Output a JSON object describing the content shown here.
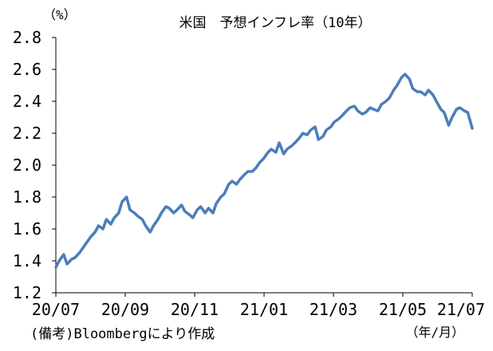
{
  "chart_data": {
    "type": "line",
    "title": "米国　予想インフレ率（10年）",
    "y_unit_label": "（%）",
    "x_unit_label": "（年/月）",
    "source_note": "(備考)Bloombergにより作成",
    "ylim": [
      1.2,
      2.8
    ],
    "y_ticks": [
      "1.2",
      "1.4",
      "1.6",
      "1.8",
      "2.0",
      "2.2",
      "2.4",
      "2.6",
      "2.8"
    ],
    "x_ticks": [
      "20/07",
      "20/09",
      "20/11",
      "21/01",
      "21/03",
      "21/05",
      "21/07"
    ],
    "grid": false,
    "legend": "none",
    "series_color": "#4A7EBB",
    "series": [
      {
        "x": [
          "2020-07-01",
          "2020-07-04",
          "2020-07-08",
          "2020-07-11",
          "2020-07-15",
          "2020-07-18",
          "2020-07-22",
          "2020-07-25",
          "2020-07-29",
          "2020-08-01",
          "2020-08-05",
          "2020-08-08",
          "2020-08-12",
          "2020-08-15",
          "2020-08-19",
          "2020-08-22",
          "2020-08-26",
          "2020-08-29",
          "2020-09-02",
          "2020-09-05",
          "2020-09-09",
          "2020-09-12",
          "2020-09-16",
          "2020-09-19",
          "2020-09-23",
          "2020-09-26",
          "2020-09-30",
          "2020-10-03",
          "2020-10-07",
          "2020-10-10",
          "2020-10-14",
          "2020-10-17",
          "2020-10-21",
          "2020-10-24",
          "2020-10-28",
          "2020-10-31",
          "2020-11-04",
          "2020-11-07",
          "2020-11-11",
          "2020-11-14",
          "2020-11-18",
          "2020-11-21",
          "2020-11-25",
          "2020-11-28",
          "2020-12-02",
          "2020-12-05",
          "2020-12-09",
          "2020-12-12",
          "2020-12-16",
          "2020-12-19",
          "2020-12-23",
          "2020-12-26",
          "2020-12-30",
          "2021-01-02",
          "2021-01-06",
          "2021-01-09",
          "2021-01-13",
          "2021-01-16",
          "2021-01-20",
          "2021-01-23",
          "2021-01-27",
          "2021-01-30",
          "2021-02-03",
          "2021-02-06",
          "2021-02-10",
          "2021-02-13",
          "2021-02-17",
          "2021-02-20",
          "2021-02-24",
          "2021-02-27",
          "2021-03-03",
          "2021-03-06",
          "2021-03-10",
          "2021-03-13",
          "2021-03-17",
          "2021-03-20",
          "2021-03-24",
          "2021-03-27",
          "2021-03-31",
          "2021-04-03",
          "2021-04-07",
          "2021-04-10",
          "2021-04-14",
          "2021-04-17",
          "2021-04-21",
          "2021-04-24",
          "2021-04-28",
          "2021-05-01",
          "2021-05-05",
          "2021-05-08",
          "2021-05-12",
          "2021-05-15",
          "2021-05-19",
          "2021-05-22",
          "2021-05-26",
          "2021-05-29",
          "2021-06-02",
          "2021-06-05",
          "2021-06-09",
          "2021-06-12",
          "2021-06-16",
          "2021-06-19",
          "2021-06-23",
          "2021-06-26",
          "2021-06-30",
          "2021-07-03",
          "2021-07-07"
        ],
        "y": [
          1.36,
          1.4,
          1.44,
          1.38,
          1.41,
          1.42,
          1.45,
          1.48,
          1.52,
          1.55,
          1.58,
          1.62,
          1.6,
          1.66,
          1.63,
          1.67,
          1.7,
          1.77,
          1.8,
          1.72,
          1.7,
          1.68,
          1.66,
          1.62,
          1.58,
          1.62,
          1.66,
          1.7,
          1.74,
          1.73,
          1.7,
          1.72,
          1.75,
          1.71,
          1.69,
          1.67,
          1.72,
          1.74,
          1.7,
          1.73,
          1.7,
          1.76,
          1.8,
          1.82,
          1.88,
          1.9,
          1.88,
          1.91,
          1.94,
          1.96,
          1.96,
          1.98,
          2.02,
          2.04,
          2.08,
          2.1,
          2.08,
          2.14,
          2.07,
          2.1,
          2.12,
          2.14,
          2.17,
          2.2,
          2.19,
          2.22,
          2.24,
          2.16,
          2.18,
          2.22,
          2.24,
          2.27,
          2.29,
          2.31,
          2.34,
          2.36,
          2.37,
          2.34,
          2.32,
          2.33,
          2.36,
          2.35,
          2.34,
          2.38,
          2.4,
          2.42,
          2.47,
          2.5,
          2.55,
          2.57,
          2.54,
          2.48,
          2.46,
          2.46,
          2.44,
          2.47,
          2.44,
          2.4,
          2.35,
          2.33,
          2.25,
          2.3,
          2.35,
          2.36,
          2.34,
          2.33,
          2.23
        ]
      }
    ]
  }
}
